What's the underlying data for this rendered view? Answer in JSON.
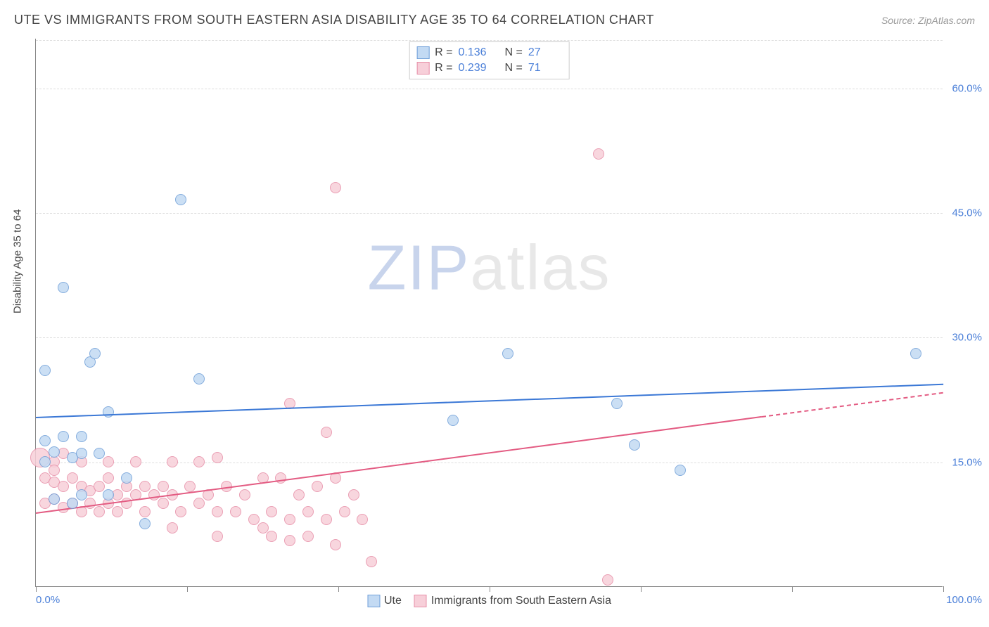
{
  "title": "UTE VS IMMIGRANTS FROM SOUTH EASTERN ASIA DISABILITY AGE 35 TO 64 CORRELATION CHART",
  "source": "Source: ZipAtlas.com",
  "ylabel": "Disability Age 35 to 64",
  "chart": {
    "type": "scatter",
    "xlim": [
      0,
      100
    ],
    "ylim": [
      0,
      66
    ],
    "yticks": [
      15,
      30,
      45,
      60
    ],
    "ytick_labels": [
      "15.0%",
      "30.0%",
      "45.0%",
      "60.0%"
    ],
    "xtick_positions": [
      0,
      16.7,
      33.3,
      50,
      66.7,
      83.3,
      100
    ],
    "x_end_labels": [
      "0.0%",
      "100.0%"
    ],
    "background_color": "#ffffff",
    "grid_color": "#dddddd",
    "point_radius": 8,
    "large_point_radius": 14,
    "series": [
      {
        "key": "ute",
        "label": "Ute",
        "color_stroke": "#6f9fd8",
        "color_fill": "#c3daf3",
        "reg_color": "#3b78d6",
        "R": "0.136",
        "N": "27",
        "regression": {
          "x1": 0,
          "y1": 20.5,
          "x2": 100,
          "y2": 24.5,
          "dash_from_x": null
        },
        "points": [
          {
            "x": 3,
            "y": 36
          },
          {
            "x": 16,
            "y": 46.5
          },
          {
            "x": 1,
            "y": 26
          },
          {
            "x": 6,
            "y": 27
          },
          {
            "x": 6.5,
            "y": 28
          },
          {
            "x": 52,
            "y": 28
          },
          {
            "x": 97,
            "y": 28
          },
          {
            "x": 18,
            "y": 25
          },
          {
            "x": 8,
            "y": 21
          },
          {
            "x": 64,
            "y": 22
          },
          {
            "x": 46,
            "y": 20
          },
          {
            "x": 1,
            "y": 17.5
          },
          {
            "x": 3,
            "y": 18
          },
          {
            "x": 5,
            "y": 18
          },
          {
            "x": 66,
            "y": 17
          },
          {
            "x": 2,
            "y": 16.2
          },
          {
            "x": 4,
            "y": 15.5
          },
          {
            "x": 5,
            "y": 16
          },
          {
            "x": 7,
            "y": 16
          },
          {
            "x": 71,
            "y": 14
          },
          {
            "x": 1,
            "y": 15
          },
          {
            "x": 10,
            "y": 13
          },
          {
            "x": 5,
            "y": 11
          },
          {
            "x": 8,
            "y": 11
          },
          {
            "x": 2,
            "y": 10.5
          },
          {
            "x": 12,
            "y": 7.5
          },
          {
            "x": 4,
            "y": 10
          }
        ]
      },
      {
        "key": "sea",
        "label": "Immigrants from South Eastern Asia",
        "color_stroke": "#e78fa8",
        "color_fill": "#f7cfd9",
        "reg_color": "#e35b82",
        "R": "0.239",
        "N": "71",
        "regression": {
          "x1": 0,
          "y1": 9,
          "x2": 100,
          "y2": 23.5,
          "dash_from_x": 80
        },
        "points": [
          {
            "x": 62,
            "y": 52
          },
          {
            "x": 33,
            "y": 48
          },
          {
            "x": 28,
            "y": 22
          },
          {
            "x": 32,
            "y": 18.5
          },
          {
            "x": 0.5,
            "y": 15.5,
            "large": true
          },
          {
            "x": 2,
            "y": 15
          },
          {
            "x": 3,
            "y": 16
          },
          {
            "x": 5,
            "y": 15
          },
          {
            "x": 8,
            "y": 15
          },
          {
            "x": 11,
            "y": 15
          },
          {
            "x": 15,
            "y": 15
          },
          {
            "x": 18,
            "y": 15
          },
          {
            "x": 20,
            "y": 15.5
          },
          {
            "x": 1,
            "y": 13
          },
          {
            "x": 2,
            "y": 12.5
          },
          {
            "x": 3,
            "y": 12
          },
          {
            "x": 4,
            "y": 13
          },
          {
            "x": 5,
            "y": 12
          },
          {
            "x": 6,
            "y": 11.5
          },
          {
            "x": 7,
            "y": 12
          },
          {
            "x": 8,
            "y": 13
          },
          {
            "x": 9,
            "y": 11
          },
          {
            "x": 10,
            "y": 12
          },
          {
            "x": 11,
            "y": 11
          },
          {
            "x": 12,
            "y": 12
          },
          {
            "x": 13,
            "y": 11
          },
          {
            "x": 14,
            "y": 12
          },
          {
            "x": 15,
            "y": 11
          },
          {
            "x": 17,
            "y": 12
          },
          {
            "x": 19,
            "y": 11
          },
          {
            "x": 21,
            "y": 12
          },
          {
            "x": 23,
            "y": 11
          },
          {
            "x": 25,
            "y": 13
          },
          {
            "x": 27,
            "y": 13
          },
          {
            "x": 29,
            "y": 11
          },
          {
            "x": 31,
            "y": 12
          },
          {
            "x": 33,
            "y": 13
          },
          {
            "x": 35,
            "y": 11
          },
          {
            "x": 1,
            "y": 10
          },
          {
            "x": 2,
            "y": 10.5
          },
          {
            "x": 3,
            "y": 9.5
          },
          {
            "x": 4,
            "y": 10
          },
          {
            "x": 5,
            "y": 9
          },
          {
            "x": 6,
            "y": 10
          },
          {
            "x": 7,
            "y": 9
          },
          {
            "x": 8,
            "y": 10
          },
          {
            "x": 9,
            "y": 9
          },
          {
            "x": 10,
            "y": 10
          },
          {
            "x": 12,
            "y": 9
          },
          {
            "x": 14,
            "y": 10
          },
          {
            "x": 16,
            "y": 9
          },
          {
            "x": 18,
            "y": 10
          },
          {
            "x": 20,
            "y": 9
          },
          {
            "x": 22,
            "y": 9
          },
          {
            "x": 24,
            "y": 8
          },
          {
            "x": 26,
            "y": 9
          },
          {
            "x": 28,
            "y": 8
          },
          {
            "x": 30,
            "y": 9
          },
          {
            "x": 32,
            "y": 8
          },
          {
            "x": 34,
            "y": 9
          },
          {
            "x": 36,
            "y": 8
          },
          {
            "x": 15,
            "y": 7
          },
          {
            "x": 20,
            "y": 6
          },
          {
            "x": 25,
            "y": 7
          },
          {
            "x": 26,
            "y": 6
          },
          {
            "x": 28,
            "y": 5.5
          },
          {
            "x": 30,
            "y": 6
          },
          {
            "x": 33,
            "y": 5
          },
          {
            "x": 37,
            "y": 3
          },
          {
            "x": 63,
            "y": 0.8
          },
          {
            "x": 2,
            "y": 14
          }
        ]
      }
    ]
  },
  "watermark": {
    "zip": "ZIP",
    "atlas": "atlas"
  }
}
